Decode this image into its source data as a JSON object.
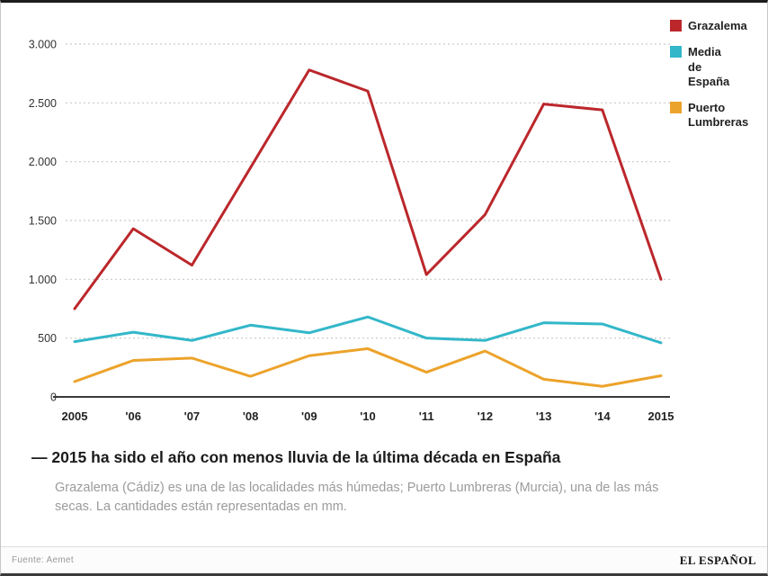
{
  "chart_data": {
    "type": "line",
    "x": [
      "2005",
      "'06",
      "'07",
      "'08",
      "'09",
      "'10",
      "'11",
      "'12",
      "'13",
      "'14",
      "2015"
    ],
    "series": [
      {
        "name": "Grazalema",
        "color": "#bb272b",
        "values": [
          750,
          1430,
          1120,
          1950,
          2780,
          2600,
          1040,
          1550,
          2490,
          2440,
          1000
        ]
      },
      {
        "name": "Media de España",
        "color": "#33b7c9",
        "values": [
          470,
          550,
          480,
          610,
          545,
          680,
          500,
          480,
          630,
          620,
          460
        ]
      },
      {
        "name": "Puerto Lumbreras",
        "color": "#eca32b",
        "values": [
          130,
          310,
          330,
          175,
          350,
          410,
          210,
          390,
          150,
          90,
          180
        ]
      }
    ],
    "ylim": [
      0,
      3000
    ],
    "yticks": [
      0,
      500,
      1000,
      1500,
      2000,
      2500,
      3000
    ],
    "ytick_labels": [
      "0",
      "500",
      "1.000",
      "1.500",
      "2.000",
      "2.500",
      "3.000"
    ],
    "grid": "dotted-horizontal",
    "legend_position": "top-right",
    "units": "mm",
    "title": "2015 ha sido el año con menos lluvia de la última década en España"
  },
  "legend": {
    "items": [
      {
        "label": "Grazalema"
      },
      {
        "label": "Media de España"
      },
      {
        "label": "Puerto Lumbreras"
      }
    ]
  },
  "headline": "— 2015 ha sido el año con menos lluvia de la última década en España",
  "subtitle": "Grazalema (Cádiz) es una de las localidades más húmedas; Puerto Lumbreras (Murcia), una de las más secas. La cantidades están representadas en mm.",
  "footer": {
    "source": "Fuente: Aemet",
    "brand": "EL ESPAÑOL"
  }
}
